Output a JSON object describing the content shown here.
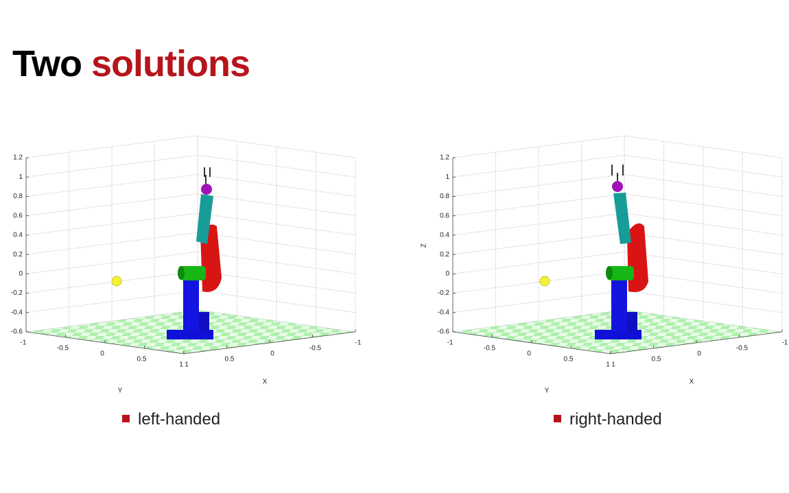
{
  "title": {
    "first": "Two",
    "second": "solutions"
  },
  "panels": [
    {
      "caption": "left-handed",
      "z_ticks": [
        1.2,
        1,
        0.8,
        0.6,
        0.4,
        0.2,
        0,
        -0.2,
        -0.4,
        -0.6
      ],
      "y_ticks": [
        -1,
        -0.5,
        0,
        0.5,
        1
      ],
      "x_ticks": [
        1,
        0.5,
        0,
        -0.5,
        -1
      ],
      "y_label": "Y",
      "x_label": "X"
    },
    {
      "caption": "right-handed",
      "z_ticks": [
        1.2,
        1,
        0.8,
        0.6,
        0.4,
        0.2,
        0,
        -0.2,
        -0.4,
        -0.6
      ],
      "y_ticks": [
        -1,
        -0.5,
        0,
        0.5,
        1
      ],
      "x_ticks": [
        1,
        0.5,
        0,
        -0.5,
        -1
      ],
      "y_label": "Y",
      "x_label": "X",
      "z_label": "Z"
    }
  ]
}
